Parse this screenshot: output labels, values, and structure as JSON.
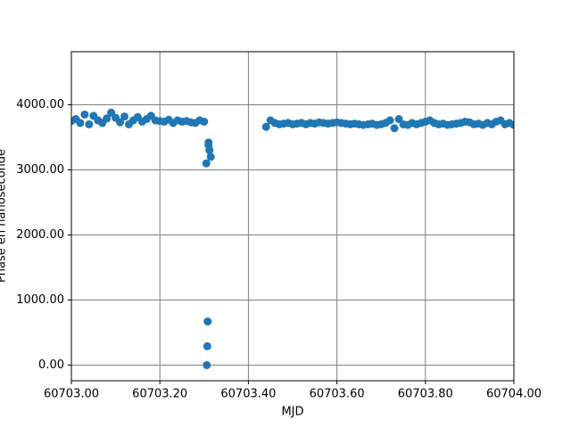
{
  "chart_data": {
    "type": "scatter",
    "xlabel": "MJD",
    "ylabel": "Phase en nanoseconde",
    "color": "#1f77b4",
    "grid": true,
    "xlim": [
      60703.0,
      60704.0
    ],
    "ylim": [
      -240,
      4815
    ],
    "xticks": [
      {
        "value": 60703.0,
        "label": "60703.00"
      },
      {
        "value": 60703.2,
        "label": "60703.20"
      },
      {
        "value": 60703.4,
        "label": "60703.40"
      },
      {
        "value": 60703.6,
        "label": "60703.60"
      },
      {
        "value": 60703.8,
        "label": "60703.80"
      },
      {
        "value": 60704.0,
        "label": "60704.00"
      }
    ],
    "yticks": [
      {
        "value": 0,
        "label": "0.00"
      },
      {
        "value": 1000,
        "label": "1000.00"
      },
      {
        "value": 2000,
        "label": "2000.00"
      },
      {
        "value": 3000,
        "label": "3000.00"
      },
      {
        "value": 4000,
        "label": "4000.00"
      }
    ],
    "x": [
      60703.0,
      60703.01,
      60703.02,
      60703.03,
      60703.04,
      60703.05,
      60703.06,
      60703.07,
      60703.08,
      60703.09,
      60703.1,
      60703.11,
      60703.12,
      60703.13,
      60703.14,
      60703.15,
      60703.16,
      60703.17,
      60703.18,
      60703.19,
      60703.2,
      60703.21,
      60703.22,
      60703.23,
      60703.24,
      60703.25,
      60703.26,
      60703.27,
      60703.28,
      60703.29,
      60703.3,
      60703.305,
      60703.31,
      60703.312,
      60703.315,
      60703.308,
      60703.307,
      60703.306,
      60703.31,
      60703.44,
      60703.45,
      60703.46,
      60703.47,
      60703.48,
      60703.49,
      60703.5,
      60703.51,
      60703.52,
      60703.53,
      60703.54,
      60703.55,
      60703.56,
      60703.57,
      60703.58,
      60703.59,
      60703.6,
      60703.61,
      60703.62,
      60703.63,
      60703.64,
      60703.65,
      60703.66,
      60703.67,
      60703.68,
      60703.69,
      60703.7,
      60703.71,
      60703.72,
      60703.73,
      60703.74,
      60703.75,
      60703.76,
      60703.77,
      60703.78,
      60703.79,
      60703.8,
      60703.81,
      60703.82,
      60703.83,
      60703.84,
      60703.85,
      60703.86,
      60703.87,
      60703.88,
      60703.89,
      60703.9,
      60703.91,
      60703.92,
      60703.93,
      60703.94,
      60703.95,
      60703.96,
      60703.97,
      60703.98,
      60703.99,
      60704.0
    ],
    "values": [
      3750,
      3780,
      3720,
      3850,
      3700,
      3830,
      3760,
      3720,
      3790,
      3880,
      3800,
      3730,
      3820,
      3700,
      3760,
      3810,
      3740,
      3780,
      3830,
      3760,
      3750,
      3740,
      3770,
      3720,
      3760,
      3740,
      3750,
      3730,
      3720,
      3760,
      3740,
      3100,
      3420,
      3300,
      3200,
      670,
      290,
      0,
      3380,
      3660,
      3760,
      3720,
      3700,
      3710,
      3720,
      3700,
      3710,
      3720,
      3700,
      3720,
      3710,
      3730,
      3720,
      3710,
      3720,
      3730,
      3720,
      3710,
      3700,
      3710,
      3700,
      3690,
      3700,
      3710,
      3690,
      3700,
      3720,
      3760,
      3640,
      3780,
      3700,
      3690,
      3720,
      3700,
      3720,
      3740,
      3760,
      3720,
      3700,
      3710,
      3690,
      3700,
      3710,
      3720,
      3740,
      3730,
      3700,
      3710,
      3690,
      3720,
      3700,
      3740,
      3760,
      3700,
      3720,
      3690
    ]
  }
}
